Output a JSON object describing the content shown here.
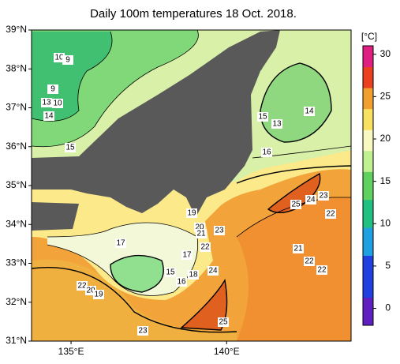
{
  "map": {
    "title": "Daily 100m temperatures 18 Oct. 2018.",
    "unit": "[°C]",
    "lonlim": [
      133.73,
      144.0
    ],
    "latlim": [
      31,
      39
    ],
    "latticks": [
      {
        "value": 39,
        "label": "39°N"
      },
      {
        "value": 38,
        "label": "38°N"
      },
      {
        "value": 37,
        "label": "37°N"
      },
      {
        "value": 36,
        "label": "36°N"
      },
      {
        "value": 35,
        "label": "35°N"
      },
      {
        "value": 34,
        "label": "34°N"
      },
      {
        "value": 33,
        "label": "33°N"
      },
      {
        "value": 32,
        "label": "32°N"
      },
      {
        "value": 31,
        "label": "31°N"
      }
    ],
    "lonticks": [
      {
        "value": 135,
        "label": "135°E"
      },
      {
        "value": 140,
        "label": "140°E"
      }
    ],
    "colorbar": {
      "lim": [
        -2,
        31
      ],
      "ticks": [
        0,
        5,
        10,
        15,
        20,
        25,
        30
      ]
    },
    "contour_labels": [
      10,
      9,
      9,
      13,
      10,
      14,
      15,
      15,
      13,
      14,
      16,
      19,
      25,
      24,
      23,
      22,
      20,
      21,
      23,
      22,
      17,
      17,
      21,
      22,
      22,
      15,
      18,
      16,
      24,
      22,
      20,
      19,
      23,
      25
    ]
  }
}
